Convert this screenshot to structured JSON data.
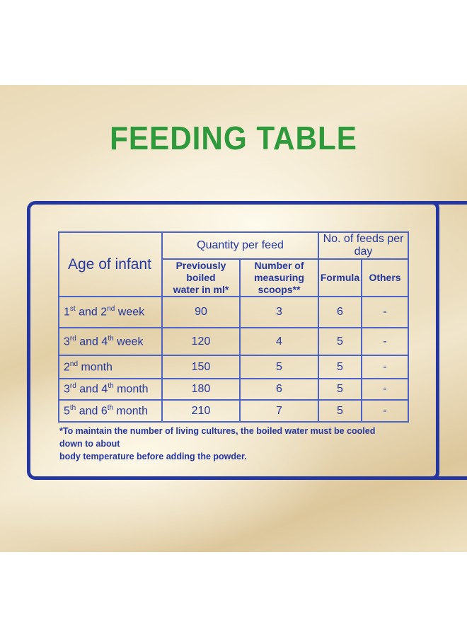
{
  "title": "FEEDING TABLE",
  "colors": {
    "title": "#2f9a3c",
    "ink": "#2437a0",
    "grid": "#4a63c4"
  },
  "table": {
    "age_header": "Age of infant",
    "group_quantity": "Quantity per feed",
    "group_feeds": "No. of feeds per day",
    "col_water_line1": "Previously boiled",
    "col_water_line2": "water in ml*",
    "col_scoops_line1": "Number of",
    "col_scoops_line2": "measuring scoops**",
    "col_formula": "Formula",
    "col_others": "Others",
    "rows": [
      {
        "n1": "1",
        "s1": "st",
        "mid": " and ",
        "n2": "2",
        "s2": "nd",
        "unit": " week",
        "water": "90",
        "scoops": "3",
        "formula": "6",
        "others": "-"
      },
      {
        "n1": "3",
        "s1": "rd",
        "mid": " and ",
        "n2": "4",
        "s2": "th",
        "unit": " week",
        "water": "120",
        "scoops": "4",
        "formula": "5",
        "others": "-"
      },
      {
        "n1": "2",
        "s1": "nd",
        "mid": "",
        "n2": "",
        "s2": "",
        "unit": " month",
        "water": "150",
        "scoops": "5",
        "formula": "5",
        "others": "-"
      },
      {
        "n1": "3",
        "s1": "rd",
        "mid": " and ",
        "n2": "4",
        "s2": "th",
        "unit": " month",
        "water": "180",
        "scoops": "6",
        "formula": "5",
        "others": "-"
      },
      {
        "n1": "5",
        "s1": "th",
        "mid": " and ",
        "n2": "6",
        "s2": "th",
        "unit": " month",
        "water": "210",
        "scoops": "7",
        "formula": "5",
        "others": "-"
      }
    ]
  },
  "footnote_line1": "*To maintain the number of living cultures, the boiled water must be cooled down to about",
  "footnote_line2": "body temperature  before adding the powder."
}
